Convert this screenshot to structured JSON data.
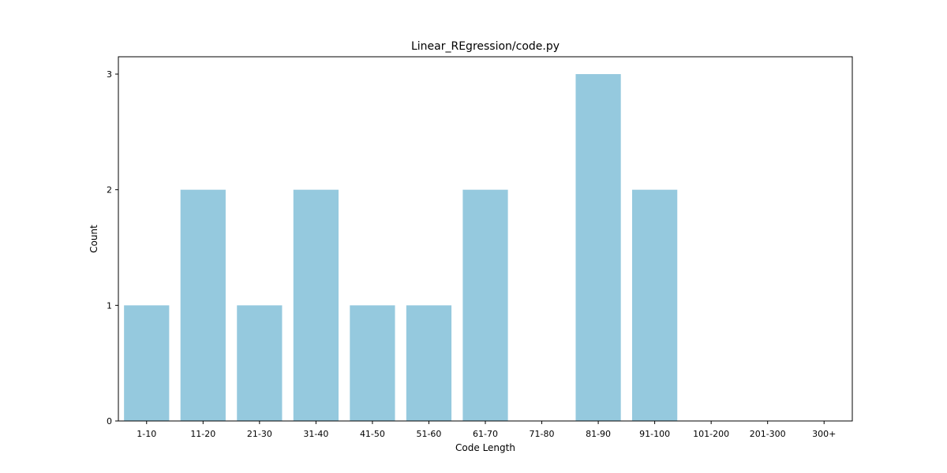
{
  "chart_data": {
    "type": "bar",
    "title": "Linear_REgression/code.py",
    "xlabel": "Code Length",
    "ylabel": "Count",
    "categories": [
      "1-10",
      "11-20",
      "21-30",
      "31-40",
      "41-50",
      "51-60",
      "61-70",
      "71-80",
      "81-90",
      "91-100",
      "101-200",
      "201-300",
      "300+"
    ],
    "values": [
      1,
      2,
      1,
      2,
      1,
      1,
      2,
      0,
      3,
      2,
      0,
      0,
      0
    ],
    "ylim": [
      0,
      3.15
    ],
    "yticks": [
      0,
      1,
      2,
      3
    ],
    "bar_color": "#95c9de",
    "grid": false,
    "legend": "none"
  }
}
